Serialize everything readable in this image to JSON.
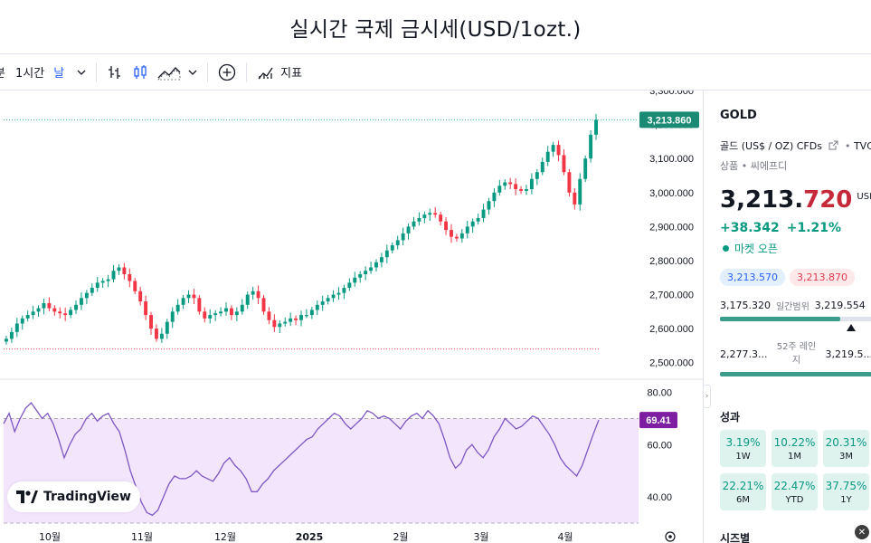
{
  "page": {
    "title": "실시간 국제 금시세(USD/1ozt.)"
  },
  "toolbar": {
    "partial_label": "분",
    "interval_label": "1시간",
    "interval_dropdown_label": "날",
    "indicators_label": "지표"
  },
  "chart_data": {
    "type": "candlestick",
    "price_axis": {
      "ticks": [
        "3,300.000",
        "3,200.000",
        "3,100.000",
        "3,000.000",
        "2,900.000",
        "2,800.000",
        "2,700.000",
        "2,600.000",
        "2,500.000"
      ],
      "ylim": [
        2470,
        3300
      ]
    },
    "time_axis": {
      "labels": [
        "10월",
        "11월",
        "12월",
        "2025",
        "2월",
        "3월",
        "4월"
      ]
    },
    "closes": [
      2570,
      2590,
      2615,
      2630,
      2640,
      2650,
      2660,
      2675,
      2660,
      2650,
      2645,
      2640,
      2655,
      2670,
      2690,
      2705,
      2720,
      2735,
      2740,
      2745,
      2770,
      2780,
      2760,
      2740,
      2710,
      2680,
      2640,
      2600,
      2570,
      2585,
      2620,
      2650,
      2670,
      2690,
      2700,
      2690,
      2650,
      2630,
      2640,
      2645,
      2650,
      2660,
      2640,
      2650,
      2670,
      2700,
      2710,
      2690,
      2650,
      2625,
      2605,
      2615,
      2620,
      2630,
      2625,
      2640,
      2640,
      2655,
      2670,
      2680,
      2690,
      2700,
      2705,
      2720,
      2735,
      2750,
      2760,
      2770,
      2780,
      2795,
      2810,
      2830,
      2845,
      2860,
      2880,
      2900,
      2915,
      2925,
      2935,
      2940,
      2935,
      2915,
      2890,
      2870,
      2865,
      2880,
      2900,
      2915,
      2925,
      2950,
      2975,
      3000,
      3020,
      3030,
      3025,
      3010,
      3005,
      3010,
      3040,
      3060,
      3090,
      3120,
      3140,
      3110,
      3060,
      3000,
      2965,
      3040,
      3100,
      3170,
      3213.86
    ],
    "last_price_label": "3,213.860",
    "session_low": 2540,
    "rsi": {
      "ticks": [
        "80.00",
        "60.00",
        "40.00"
      ],
      "ylim": [
        30,
        84
      ],
      "current_label": "69.41",
      "overbought": 70,
      "oversold": 30,
      "values": [
        68,
        72,
        65,
        70,
        74,
        76,
        73,
        70,
        72,
        68,
        62,
        55,
        60,
        64,
        66,
        70,
        72,
        69,
        71,
        72,
        68,
        65,
        58,
        50,
        44,
        38,
        34,
        33,
        35,
        40,
        45,
        48,
        47,
        47,
        48,
        50,
        48,
        47,
        46,
        49,
        53,
        55,
        52,
        50,
        47,
        42,
        42,
        45,
        47,
        50,
        52,
        54,
        56,
        58,
        60,
        62,
        63,
        66,
        68,
        70,
        72,
        71,
        68,
        66,
        68,
        70,
        73,
        72,
        70,
        71,
        70,
        68,
        66,
        69,
        71,
        72,
        70,
        73,
        71,
        68,
        62,
        55,
        51,
        53,
        58,
        60,
        57,
        55,
        58,
        63,
        66,
        70,
        68,
        66,
        67,
        69,
        71,
        70,
        67,
        64,
        60,
        55,
        52,
        50,
        48,
        52,
        58,
        64,
        69.41
      ]
    }
  },
  "branding": {
    "logo_text": "TradingView"
  },
  "side": {
    "ticker": "GOLD",
    "name": "골드 (US$ / OZ) CFDs",
    "source": "TVC",
    "category": "상품 • 씨에프디",
    "price_main": "3,213.",
    "price_last": "720",
    "currency": "USD",
    "change_abs": "+38.342",
    "change_pct": "+1.21%",
    "market_status": "마켓 오픈",
    "bid": "3,213.570",
    "ask": "3,213.870",
    "day_low": "3,175.320",
    "day_range_label": "일간범위",
    "day_high": "3,219.554",
    "day_position": 0.91,
    "week52_low": "2,277.3...",
    "week52_label": "52주 레인지",
    "week52_high": "3,219.5...",
    "week52_position": 0.99,
    "perf_title": "성과",
    "perf": [
      {
        "value": "3.19%",
        "period": "1W"
      },
      {
        "value": "10.22%",
        "period": "1M"
      },
      {
        "value": "20.31%",
        "period": "3M"
      },
      {
        "value": "22.21%",
        "period": "6M"
      },
      {
        "value": "22.47%",
        "period": "YTD"
      },
      {
        "value": "37.75%",
        "period": "1Y"
      }
    ],
    "more_title": "시즈별"
  },
  "colors": {
    "up": "#089981",
    "down": "#f23645",
    "rsi_line": "#7e57c2",
    "rsi_band": "#f3e5fc",
    "label_bg": "#1a8a74",
    "rsi_label_bg": "#7e1fa2"
  }
}
